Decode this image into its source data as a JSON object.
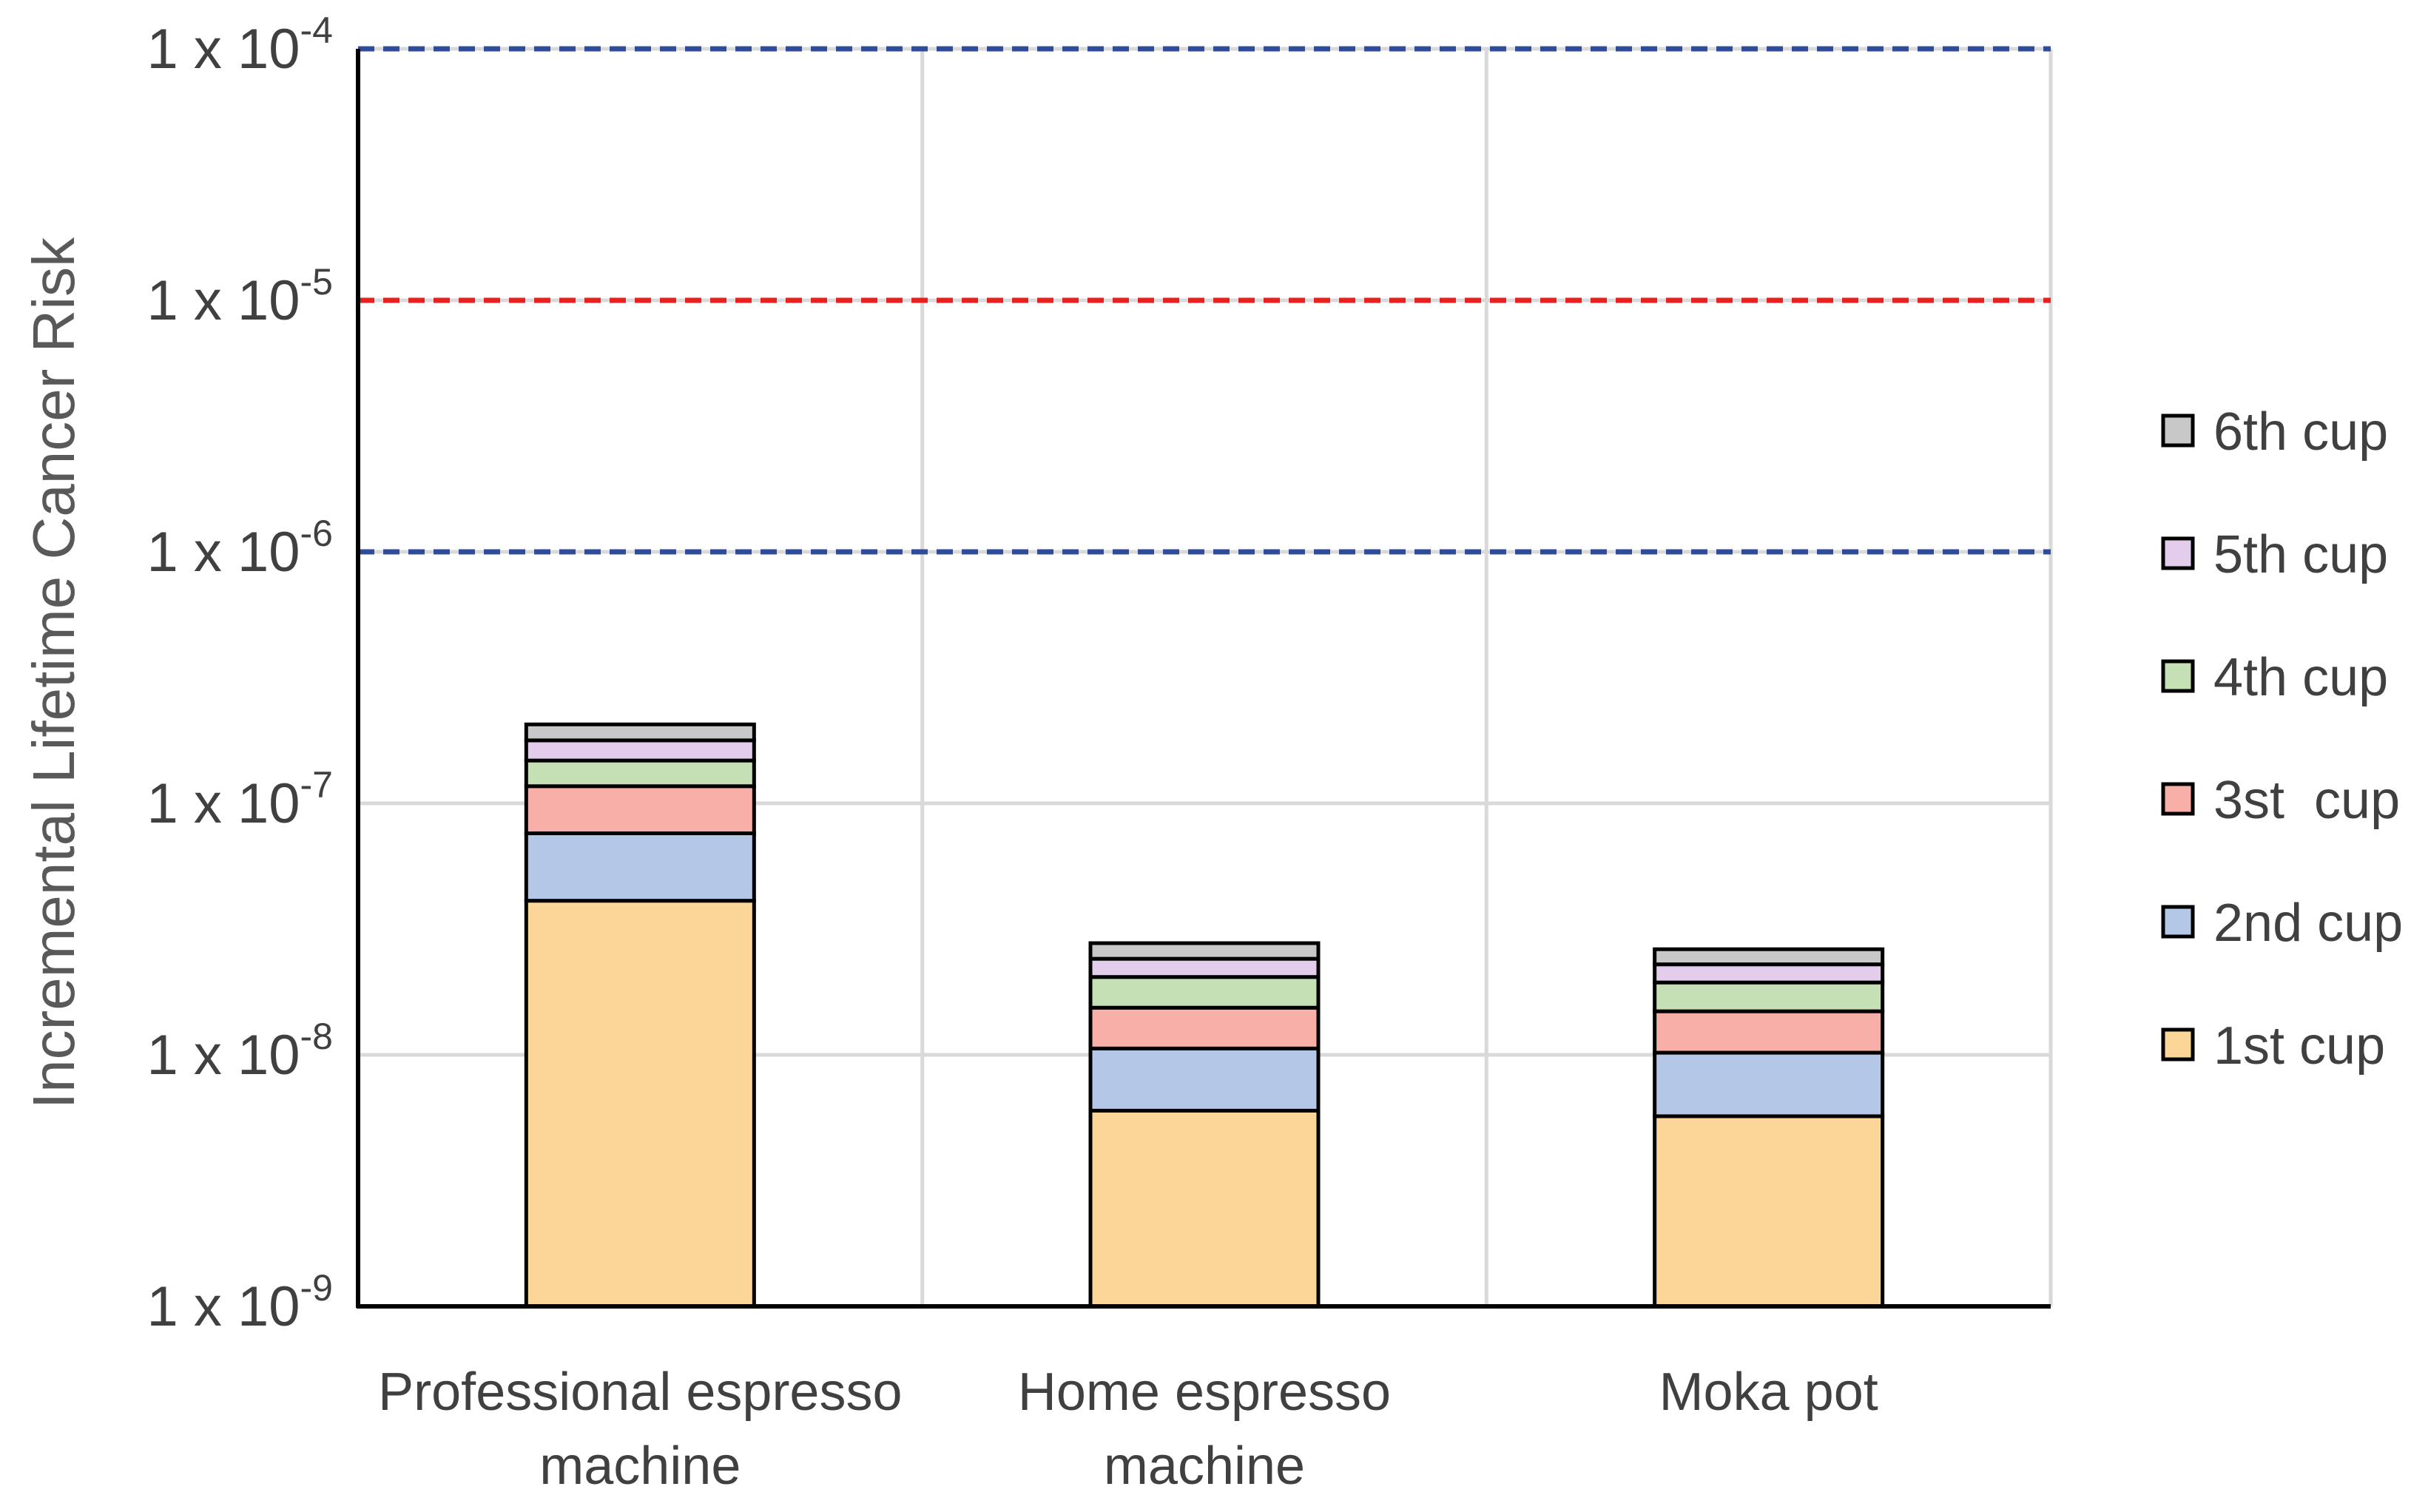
{
  "chart_data": {
    "type": "bar",
    "stacked": true,
    "scale": "log",
    "ylabel": "Incremental Lifetime Cancer Risk",
    "xlabel": "",
    "ylim": [
      1e-09,
      0.0001
    ],
    "y_ticks": [
      {
        "value": 0.0001,
        "base": "1 x 10",
        "exp": "-4"
      },
      {
        "value": 1e-05,
        "base": "1 x 10",
        "exp": "-5"
      },
      {
        "value": 1e-06,
        "base": "1 x 10",
        "exp": "-6"
      },
      {
        "value": 1e-07,
        "base": "1 x 10",
        "exp": "-7"
      },
      {
        "value": 1e-08,
        "base": "1 x 10",
        "exp": "-8"
      },
      {
        "value": 1e-09,
        "base": "1 x 10",
        "exp": "-9"
      }
    ],
    "categories": [
      [
        "Professional espresso",
        "machine"
      ],
      [
        "Home espresso",
        "machine"
      ],
      [
        "Moka pot"
      ]
    ],
    "series": [
      {
        "name": "1st cup",
        "color": "#FCD699",
        "values": [
          4e-08,
          5e-09,
          4.7e-09
        ]
      },
      {
        "name": "2nd cup",
        "color": "#B4C7E7",
        "values": [
          3.5e-08,
          4.6e-09,
          4.5e-09
        ]
      },
      {
        "name": "3st  cup",
        "color": "#F8AFA8",
        "values": [
          4.1e-08,
          4.8e-09,
          4.7e-09
        ]
      },
      {
        "name": "4th cup",
        "color": "#C5E0B4",
        "values": [
          3.1e-08,
          5e-09,
          4.5e-09
        ]
      },
      {
        "name": "5th cup",
        "color": "#E3CCEC",
        "values": [
          3e-08,
          3.7e-09,
          3.5e-09
        ]
      },
      {
        "name": "6th cup",
        "color": "#C8C8C8",
        "values": [
          2.8e-08,
          3.7e-09,
          3.4e-09
        ]
      }
    ],
    "reference_lines": [
      {
        "value": 0.0001,
        "color": "#2E4C9A",
        "style": "dashed"
      },
      {
        "value": 1e-05,
        "color": "#E8211E",
        "style": "dashed"
      },
      {
        "value": 1e-06,
        "color": "#2E4C9A",
        "style": "dashed"
      }
    ],
    "grid": true,
    "legend_position": "right",
    "colors": {
      "axis": "#000000",
      "grid": "#D9D9D9",
      "bar_outline": "#000000"
    }
  }
}
